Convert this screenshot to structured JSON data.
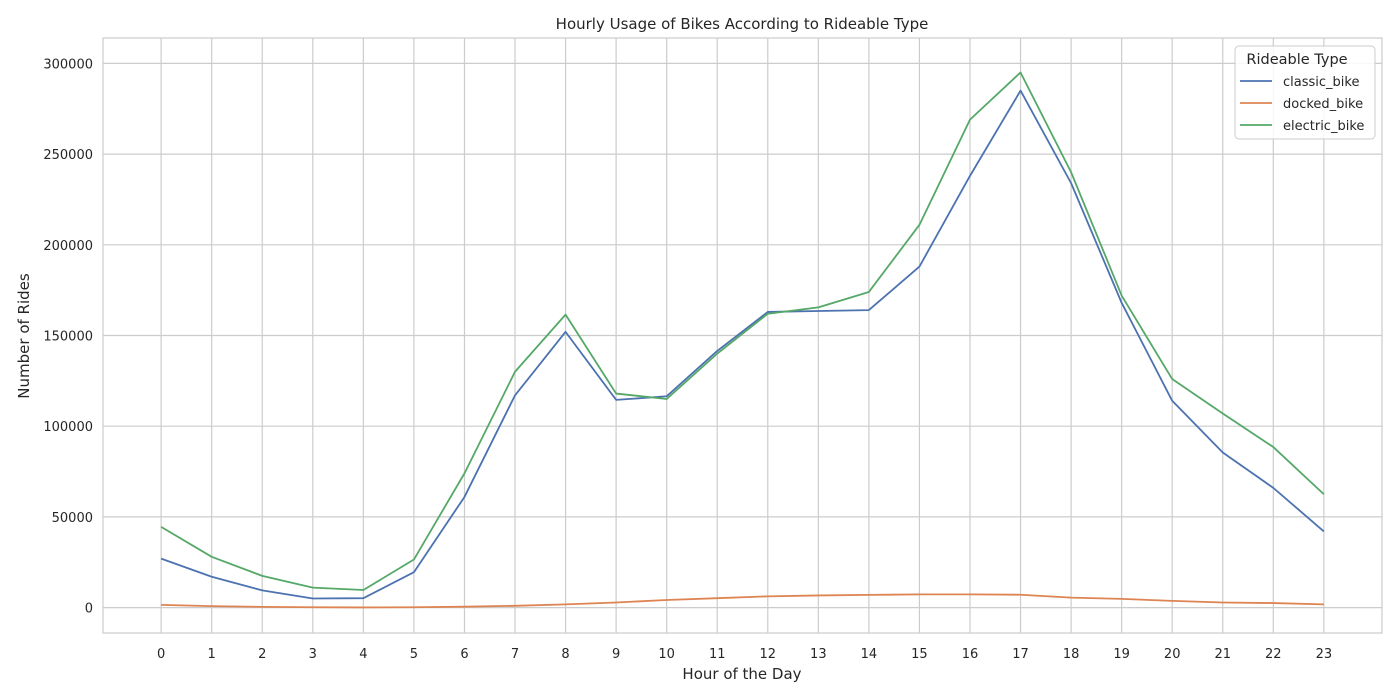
{
  "chart_data": {
    "type": "line",
    "title": "Hourly Usage of Bikes According to Rideable Type",
    "xlabel": "Hour of the Day",
    "ylabel": "Number of Rides",
    "x": [
      0,
      1,
      2,
      3,
      4,
      5,
      6,
      7,
      8,
      9,
      10,
      11,
      12,
      13,
      14,
      15,
      16,
      17,
      18,
      19,
      20,
      21,
      22,
      23
    ],
    "ylim": [
      -14000,
      314000
    ],
    "xlim": [
      -1.15,
      24.15
    ],
    "yticks": [
      0,
      50000,
      100000,
      150000,
      200000,
      250000,
      300000
    ],
    "grid": true,
    "legend": {
      "title": "Rideable Type",
      "placement": "top-right"
    },
    "series": [
      {
        "name": "classic_bike",
        "color": "#4c72b0",
        "values": [
          27000,
          17000,
          9500,
          5000,
          5200,
          19500,
          61000,
          117000,
          152000,
          114500,
          116500,
          141500,
          163000,
          163500,
          164000,
          188000,
          238000,
          285000,
          234000,
          168000,
          114000,
          85500,
          66000,
          42000
        ]
      },
      {
        "name": "docked_bike",
        "color": "#dd8452",
        "values": [
          1500,
          800,
          400,
          200,
          100,
          200,
          500,
          1000,
          1800,
          2800,
          4200,
          5200,
          6200,
          6700,
          7000,
          7300,
          7300,
          7100,
          5500,
          4800,
          3700,
          2800,
          2500,
          1800
        ]
      },
      {
        "name": "electric_bike",
        "color": "#55a868",
        "values": [
          44500,
          28000,
          17500,
          11000,
          9700,
          26500,
          74000,
          130000,
          161500,
          118000,
          115000,
          140000,
          162000,
          165500,
          174000,
          211000,
          269000,
          295000,
          240000,
          172000,
          126000,
          107000,
          88500,
          62500
        ]
      }
    ]
  }
}
